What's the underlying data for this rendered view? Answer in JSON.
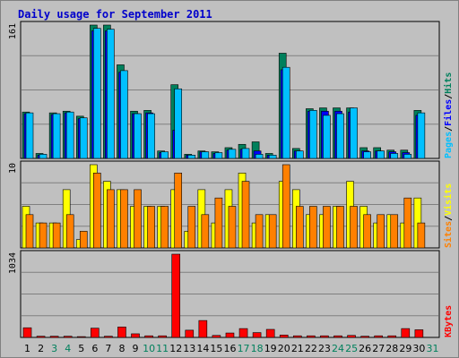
{
  "title": "Daily usage for September 2011",
  "colors": {
    "hits": "#00805c",
    "files": "#0000ff",
    "pages": "#00c0ff",
    "visits": "#ffff00",
    "sites": "#ff8000",
    "kbytes": "#ff0000",
    "frame_bg": "#c0c0c0",
    "weekend_label": "#00805c",
    "weekday_label": "#000000"
  },
  "right_labels": {
    "pages": "Pages",
    "files": "Files",
    "hits": "Hits",
    "slash": "/",
    "sites": "Sites",
    "visits": "Visits",
    "kbytes": "KBytes"
  },
  "chart_data": [
    {
      "type": "bar",
      "name": "hits-files-pages",
      "ylabel_max": "161",
      "ylim": [
        0,
        161
      ],
      "x": [
        1,
        2,
        3,
        4,
        5,
        6,
        7,
        8,
        9,
        10,
        11,
        12,
        13,
        14,
        15,
        16,
        17,
        18,
        19,
        20,
        21,
        22,
        23,
        24,
        25,
        26,
        27,
        28,
        29,
        30,
        31
      ],
      "series": [
        {
          "name": "Hits",
          "values": [
            56,
            6,
            55,
            57,
            51,
            161,
            161,
            113,
            57,
            58,
            9,
            89,
            5,
            9,
            8,
            13,
            17,
            20,
            6,
            127,
            12,
            60,
            61,
            61,
            61,
            13,
            13,
            10,
            10,
            58,
            0
          ]
        },
        {
          "name": "Files",
          "values": [
            54,
            4,
            53,
            55,
            48,
            154,
            154,
            104,
            54,
            55,
            7,
            34,
            4,
            8,
            6,
            10,
            11,
            9,
            4,
            107,
            9,
            57,
            57,
            57,
            56,
            9,
            9,
            8,
            7,
            52,
            0
          ]
        },
        {
          "name": "Pages",
          "values": [
            55,
            5,
            54,
            56,
            49,
            157,
            156,
            106,
            54,
            54,
            8,
            84,
            4,
            8,
            7,
            11,
            12,
            5,
            4,
            110,
            9,
            58,
            52,
            54,
            61,
            8,
            9,
            6,
            5,
            55,
            0
          ]
        }
      ]
    },
    {
      "type": "bar",
      "name": "visits-sites",
      "ylabel_max": "10",
      "ylim": [
        0,
        10
      ],
      "x": [
        1,
        2,
        3,
        4,
        5,
        6,
        7,
        8,
        9,
        10,
        11,
        12,
        13,
        14,
        15,
        16,
        17,
        18,
        19,
        20,
        21,
        22,
        23,
        24,
        25,
        26,
        27,
        28,
        29,
        30,
        31
      ],
      "series": [
        {
          "name": "Visits",
          "values": [
            5,
            3,
            3,
            7,
            1,
            10,
            8,
            7,
            5,
            5,
            5,
            7,
            2,
            7,
            3,
            7,
            9,
            3,
            4,
            8,
            7,
            4,
            4,
            5,
            8,
            5,
            3,
            4,
            3,
            6,
            0
          ]
        },
        {
          "name": "Sites",
          "values": [
            4,
            3,
            3,
            4,
            2,
            9,
            7,
            7,
            7,
            5,
            5,
            9,
            5,
            4,
            6,
            5,
            8,
            4,
            4,
            10,
            5,
            5,
            5,
            5,
            5,
            4,
            4,
            4,
            6,
            3,
            0
          ]
        }
      ]
    },
    {
      "type": "bar",
      "name": "kbytes",
      "ylabel_max": "1034",
      "ylim": [
        0,
        1034
      ],
      "x": [
        1,
        2,
        3,
        4,
        5,
        6,
        7,
        8,
        9,
        10,
        11,
        12,
        13,
        14,
        15,
        16,
        17,
        18,
        19,
        20,
        21,
        22,
        23,
        24,
        25,
        26,
        27,
        28,
        29,
        30,
        31
      ],
      "series": [
        {
          "name": "KBytes",
          "values": [
            120,
            15,
            15,
            15,
            10,
            115,
            15,
            130,
            45,
            20,
            20,
            1034,
            90,
            210,
            25,
            55,
            110,
            60,
            100,
            30,
            20,
            20,
            20,
            20,
            25,
            15,
            20,
            20,
            110,
            95,
            0
          ]
        }
      ]
    }
  ],
  "x_labels": [
    "1",
    "2",
    "3",
    "4",
    "5",
    "6",
    "7",
    "8",
    "9",
    "10",
    "11",
    "12",
    "13",
    "14",
    "15",
    "16",
    "17",
    "18",
    "19",
    "20",
    "21",
    "22",
    "23",
    "24",
    "25",
    "26",
    "27",
    "28",
    "29",
    "30",
    "31"
  ],
  "weekend_days": [
    3,
    4,
    10,
    11,
    17,
    18,
    24,
    25,
    31
  ]
}
